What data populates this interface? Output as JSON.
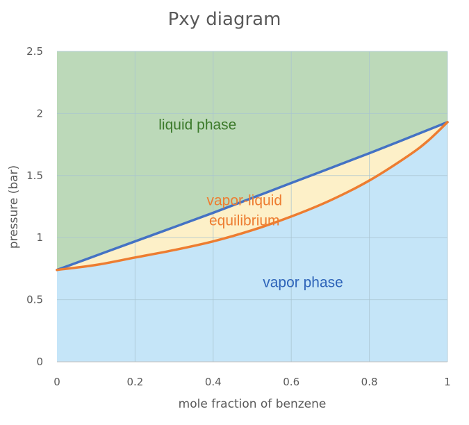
{
  "chart_data": {
    "type": "area",
    "title": "Pxy diagram",
    "xlabel": "mole fraction of benzene",
    "ylabel": "pressure (bar)",
    "xlim": [
      0,
      1
    ],
    "ylim": [
      0,
      2.5
    ],
    "x_ticks": [
      "0",
      "0.2",
      "0.4",
      "0.6",
      "0.8",
      "1"
    ],
    "y_ticks": [
      "0",
      "0.5",
      "1",
      "1.5",
      "2",
      "2.5"
    ],
    "grid": true,
    "series": [
      {
        "color": "#4472c4",
        "x": [
          0,
          0.2,
          0.4,
          0.6,
          0.8,
          1
        ],
        "y": [
          0.74,
          0.97,
          1.2,
          1.44,
          1.68,
          1.93
        ]
      },
      {
        "color": "#ed7d31",
        "x": [
          0,
          0.1,
          0.2,
          0.3,
          0.4,
          0.5,
          0.6,
          0.7,
          0.8,
          0.9,
          0.95,
          1
        ],
        "y": [
          0.74,
          0.78,
          0.84,
          0.9,
          0.97,
          1.06,
          1.17,
          1.3,
          1.46,
          1.66,
          1.78,
          1.93
        ]
      }
    ],
    "region_colors": {
      "liquid": "#bcd9b9",
      "vle": "#fdf0c8",
      "vapor": "#c5e5f8"
    },
    "annotations": [
      {
        "key": "liquid",
        "text": "liquid phase",
        "color": "#3c7a2b",
        "x": 0.36,
        "y": 1.87
      },
      {
        "key": "vle1",
        "text": "vapor-liquid",
        "color": "#ed7d31",
        "x": 0.48,
        "y": 1.26
      },
      {
        "key": "vle2",
        "text": "equilibrium",
        "color": "#ed7d31",
        "x": 0.48,
        "y": 1.1
      },
      {
        "key": "vapor",
        "text": "vapor phase",
        "color": "#2e64b9",
        "x": 0.63,
        "y": 0.6
      }
    ]
  }
}
